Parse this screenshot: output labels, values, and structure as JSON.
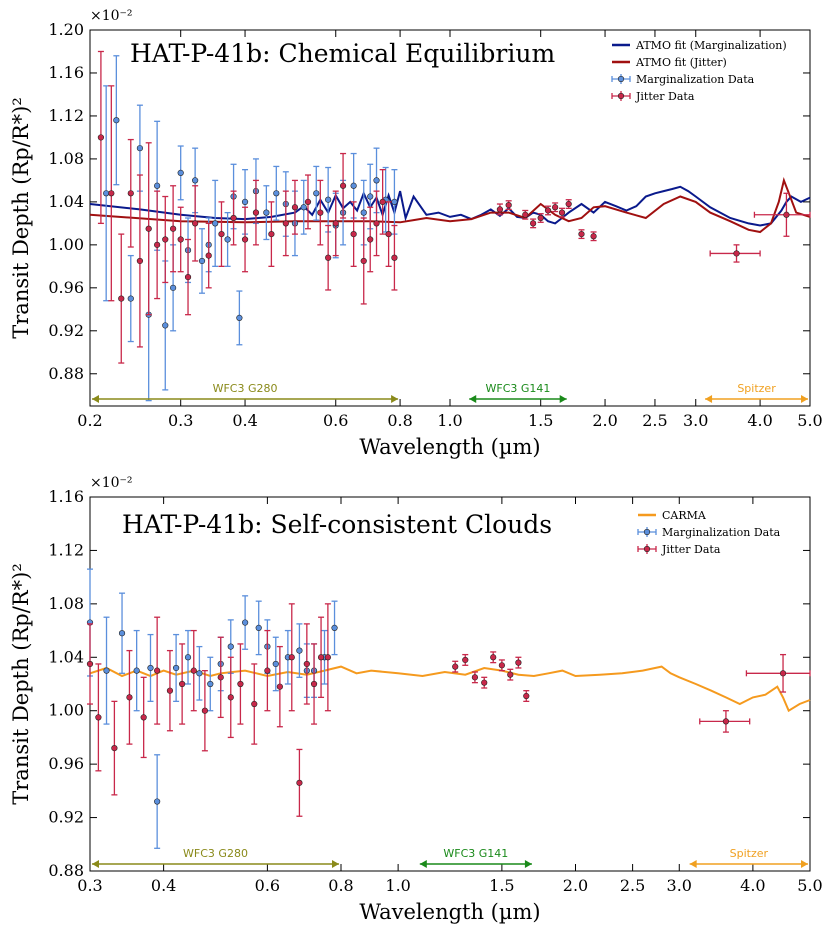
{
  "chart_data": [
    {
      "type": "scatter",
      "title": "HAT-P-41b: Chemical Equilibrium",
      "xlabel": "Wavelength (µm)",
      "ylabel": "Transit Depth (Rp/R*)²",
      "y_multiplier": "×10⁻²",
      "xscale": "log",
      "xlim": [
        0.2,
        5.0
      ],
      "ylim": [
        0.85,
        1.2
      ],
      "xticks": [
        0.2,
        0.3,
        0.4,
        0.6,
        0.8,
        1.0,
        1.5,
        2.0,
        2.5,
        3.0,
        4.0,
        5.0
      ],
      "xtick_labels": [
        "0.2",
        "0.3",
        "0.4",
        "0.6",
        "0.8",
        "1.0",
        "1.5",
        "2.0",
        "2.5",
        "3.0",
        "4.0",
        "5.0"
      ],
      "yticks": [
        0.88,
        0.92,
        0.96,
        1.0,
        1.04,
        1.08,
        1.12,
        1.16,
        1.2
      ],
      "ytick_labels": [
        "0.88",
        "0.92",
        "0.96",
        "1.00",
        "1.04",
        "1.08",
        "1.12",
        "1.16",
        "1.20"
      ],
      "legend_position": "top-right",
      "legend": [
        {
          "label": "ATMO fit (Marginalization)",
          "kind": "line",
          "color": "#0a1a8c"
        },
        {
          "label": "ATMO fit (Jitter)",
          "kind": "line",
          "color": "#a01010"
        },
        {
          "label": "Marginalization Data",
          "kind": "errorbar",
          "color": "#5b8fdc"
        },
        {
          "label": "Jitter Data",
          "kind": "errorbar",
          "color": "#c8284a"
        }
      ],
      "annotations": [
        {
          "text": "WFC3 G280",
          "x_range": [
            0.2,
            0.8
          ],
          "color": "#8a8a1a"
        },
        {
          "text": "WFC3 G141",
          "x_range": [
            1.08,
            1.7
          ],
          "color": "#1a8a1a"
        },
        {
          "text": "Spitzer",
          "x_range": [
            3.1,
            5.0
          ],
          "color": "#f0a020"
        }
      ],
      "lines": [
        {
          "name": "ATMO fit (Marginalization)",
          "color": "#0a1a8c",
          "x": [
            0.2,
            0.25,
            0.3,
            0.35,
            0.4,
            0.45,
            0.5,
            0.52,
            0.54,
            0.56,
            0.58,
            0.6,
            0.62,
            0.64,
            0.66,
            0.68,
            0.7,
            0.72,
            0.74,
            0.76,
            0.78,
            0.8,
            0.82,
            0.85,
            0.9,
            0.95,
            1.0,
            1.05,
            1.1,
            1.15,
            1.2,
            1.25,
            1.3,
            1.35,
            1.4,
            1.45,
            1.5,
            1.55,
            1.6,
            1.65,
            1.7,
            1.8,
            1.9,
            2.0,
            2.1,
            2.2,
            2.3,
            2.4,
            2.5,
            2.6,
            2.7,
            2.8,
            2.9,
            3.0,
            3.2,
            3.5,
            3.8,
            4.0,
            4.2,
            4.4,
            4.5,
            4.6,
            4.8,
            5.0
          ],
          "y": [
            1.038,
            1.033,
            1.028,
            1.025,
            1.024,
            1.026,
            1.03,
            1.036,
            1.028,
            1.042,
            1.03,
            1.046,
            1.034,
            1.04,
            1.032,
            1.048,
            1.035,
            1.044,
            1.028,
            1.046,
            1.03,
            1.05,
            1.025,
            1.045,
            1.028,
            1.03,
            1.026,
            1.028,
            1.024,
            1.028,
            1.033,
            1.027,
            1.034,
            1.026,
            1.025,
            1.03,
            1.028,
            1.022,
            1.02,
            1.025,
            1.03,
            1.038,
            1.03,
            1.04,
            1.036,
            1.032,
            1.036,
            1.045,
            1.048,
            1.05,
            1.052,
            1.054,
            1.05,
            1.045,
            1.035,
            1.025,
            1.02,
            1.018,
            1.02,
            1.032,
            1.04,
            1.045,
            1.04,
            1.044
          ]
        },
        {
          "name": "ATMO fit (Jitter)",
          "color": "#a01010",
          "x": [
            0.2,
            0.3,
            0.4,
            0.5,
            0.6,
            0.7,
            0.8,
            0.85,
            0.9,
            1.0,
            1.1,
            1.2,
            1.3,
            1.4,
            1.5,
            1.6,
            1.7,
            1.8,
            1.9,
            2.0,
            2.2,
            2.4,
            2.6,
            2.8,
            3.0,
            3.2,
            3.5,
            3.8,
            4.0,
            4.2,
            4.35,
            4.45,
            4.55,
            4.7,
            5.0
          ],
          "y": [
            1.028,
            1.022,
            1.021,
            1.022,
            1.022,
            1.022,
            1.021,
            1.023,
            1.025,
            1.022,
            1.024,
            1.03,
            1.03,
            1.025,
            1.038,
            1.028,
            1.022,
            1.025,
            1.035,
            1.036,
            1.03,
            1.025,
            1.038,
            1.045,
            1.04,
            1.03,
            1.022,
            1.014,
            1.012,
            1.02,
            1.04,
            1.06,
            1.048,
            1.03,
            1.026
          ]
        }
      ],
      "marginalization_data": {
        "color": "#5b8fdc",
        "x": [
          0.215,
          0.225,
          0.24,
          0.25,
          0.26,
          0.27,
          0.28,
          0.29,
          0.3,
          0.31,
          0.32,
          0.33,
          0.34,
          0.35,
          0.37,
          0.38,
          0.39,
          0.4,
          0.42,
          0.44,
          0.46,
          0.48,
          0.5,
          0.52,
          0.55,
          0.58,
          0.6,
          0.62,
          0.65,
          0.68,
          0.7,
          0.72,
          0.75,
          0.78
        ],
        "y": [
          1.048,
          1.116,
          0.95,
          1.09,
          0.935,
          1.055,
          0.925,
          0.96,
          1.067,
          0.995,
          1.06,
          0.985,
          1.0,
          1.02,
          1.005,
          1.045,
          0.932,
          1.04,
          1.05,
          1.03,
          1.048,
          1.038,
          1.02,
          1.035,
          1.048,
          1.042,
          1.018,
          1.03,
          1.055,
          1.03,
          1.045,
          1.06,
          1.042,
          1.04
        ],
        "yerr": [
          0.1,
          0.06,
          0.04,
          0.04,
          0.08,
          0.06,
          0.06,
          0.04,
          0.025,
          0.03,
          0.03,
          0.03,
          0.025,
          0.04,
          0.025,
          0.03,
          0.025,
          0.03,
          0.03,
          0.025,
          0.025,
          0.03,
          0.03,
          0.025,
          0.025,
          0.03,
          0.03,
          0.03,
          0.03,
          0.03,
          0.03,
          0.03,
          0.03,
          0.03
        ]
      },
      "jitter_data": {
        "color": "#c8284a",
        "x": [
          0.21,
          0.22,
          0.23,
          0.24,
          0.25,
          0.26,
          0.27,
          0.28,
          0.29,
          0.3,
          0.31,
          0.32,
          0.34,
          0.36,
          0.38,
          0.4,
          0.42,
          0.45,
          0.48,
          0.5,
          0.53,
          0.56,
          0.58,
          0.6,
          0.62,
          0.65,
          0.68,
          0.7,
          0.72,
          0.74,
          0.76,
          0.78,
          1.25,
          1.3,
          1.4,
          1.45,
          1.5,
          1.55,
          1.6,
          1.65,
          1.7,
          1.8,
          1.9,
          3.6,
          4.5
        ],
        "y": [
          1.1,
          1.048,
          0.95,
          1.048,
          0.985,
          1.015,
          1.0,
          1.005,
          1.015,
          1.005,
          0.97,
          1.02,
          0.99,
          1.01,
          1.025,
          1.005,
          1.03,
          1.01,
          1.02,
          1.035,
          1.04,
          1.03,
          0.988,
          1.02,
          1.055,
          1.01,
          0.985,
          1.005,
          1.02,
          1.04,
          1.01,
          0.988,
          1.033,
          1.037,
          1.028,
          1.02,
          1.025,
          1.032,
          1.035,
          1.03,
          1.038,
          1.01,
          1.008,
          0.992,
          1.028
        ],
        "yerr": [
          0.08,
          0.1,
          0.06,
          0.05,
          0.08,
          0.08,
          0.05,
          0.04,
          0.04,
          0.03,
          0.035,
          0.035,
          0.03,
          0.03,
          0.025,
          0.03,
          0.03,
          0.03,
          0.03,
          0.025,
          0.025,
          0.03,
          0.03,
          0.03,
          0.03,
          0.03,
          0.04,
          0.03,
          0.03,
          0.03,
          0.03,
          0.03,
          0.005,
          0.004,
          0.004,
          0.004,
          0.004,
          0.004,
          0.004,
          0.004,
          0.004,
          0.004,
          0.004,
          0.008,
          0.02
        ],
        "xerr": [
          0,
          0,
          0,
          0,
          0,
          0,
          0,
          0,
          0,
          0,
          0,
          0,
          0,
          0,
          0,
          0,
          0,
          0,
          0,
          0,
          0,
          0,
          0,
          0,
          0,
          0,
          0,
          0,
          0,
          0,
          0,
          0,
          0,
          0,
          0,
          0,
          0,
          0,
          0,
          0,
          0,
          0,
          0,
          0.4,
          0.6
        ]
      }
    },
    {
      "type": "scatter",
      "title": "HAT-P-41b: Self-consistent Clouds",
      "xlabel": "Wavelength (µm)",
      "ylabel": "Transit Depth (Rp/R*)²",
      "y_multiplier": "×10⁻²",
      "xscale": "log",
      "xlim": [
        0.3,
        5.0
      ],
      "ylim": [
        0.88,
        1.16
      ],
      "xticks": [
        0.3,
        0.4,
        0.6,
        0.8,
        1.0,
        1.5,
        2.0,
        2.5,
        3.0,
        4.0,
        5.0
      ],
      "xtick_labels": [
        "0.3",
        "0.4",
        "0.6",
        "0.8",
        "1.0",
        "1.5",
        "2.0",
        "2.5",
        "3.0",
        "4.0",
        "5.0"
      ],
      "yticks": [
        0.88,
        0.92,
        0.96,
        1.0,
        1.04,
        1.08,
        1.12,
        1.16
      ],
      "ytick_labels": [
        "0.88",
        "0.92",
        "0.96",
        "1.00",
        "1.04",
        "1.08",
        "1.12",
        "1.16"
      ],
      "legend_position": "top-right",
      "legend": [
        {
          "label": "CARMA",
          "kind": "line",
          "color": "#f59a1e"
        },
        {
          "label": "Marginalization Data",
          "kind": "errorbar",
          "color": "#5b8fdc"
        },
        {
          "label": "Jitter Data",
          "kind": "errorbar",
          "color": "#c8284a"
        }
      ],
      "annotations": [
        {
          "text": "WFC3 G280",
          "x_range": [
            0.3,
            0.8
          ],
          "color": "#8a8a1a"
        },
        {
          "text": "WFC3 G141",
          "x_range": [
            1.08,
            1.7
          ],
          "color": "#1a8a1a"
        },
        {
          "text": "Spitzer",
          "x_range": [
            3.1,
            5.0
          ],
          "color": "#f0a020"
        }
      ],
      "lines": [
        {
          "name": "CARMA",
          "color": "#f59a1e",
          "x": [
            0.3,
            0.32,
            0.34,
            0.36,
            0.38,
            0.4,
            0.42,
            0.45,
            0.48,
            0.5,
            0.55,
            0.6,
            0.65,
            0.7,
            0.75,
            0.8,
            0.85,
            0.9,
            1.0,
            1.1,
            1.2,
            1.3,
            1.4,
            1.5,
            1.6,
            1.7,
            1.8,
            1.9,
            2.0,
            2.2,
            2.4,
            2.6,
            2.8,
            2.9,
            3.0,
            3.2,
            3.4,
            3.6,
            3.8,
            4.0,
            4.2,
            4.4,
            4.5,
            4.6,
            4.8,
            5.0
          ],
          "y": [
            1.028,
            1.032,
            1.026,
            1.03,
            1.026,
            1.03,
            1.027,
            1.03,
            1.026,
            1.028,
            1.03,
            1.026,
            1.029,
            1.027,
            1.03,
            1.033,
            1.028,
            1.03,
            1.028,
            1.026,
            1.029,
            1.027,
            1.032,
            1.03,
            1.027,
            1.026,
            1.028,
            1.03,
            1.026,
            1.027,
            1.028,
            1.03,
            1.033,
            1.028,
            1.025,
            1.02,
            1.015,
            1.01,
            1.005,
            1.01,
            1.012,
            1.018,
            1.01,
            1.0,
            1.005,
            1.008
          ]
        }
      ],
      "marginalization_data": {
        "color": "#5b8fdc",
        "x": [
          0.3,
          0.32,
          0.34,
          0.36,
          0.38,
          0.39,
          0.42,
          0.44,
          0.46,
          0.48,
          0.5,
          0.52,
          0.55,
          0.58,
          0.6,
          0.62,
          0.65,
          0.68,
          0.7,
          0.72,
          0.75,
          0.78
        ],
        "y": [
          1.066,
          1.03,
          1.058,
          1.03,
          1.032,
          0.932,
          1.032,
          1.04,
          1.028,
          1.02,
          1.035,
          1.048,
          1.066,
          1.062,
          1.048,
          1.035,
          1.04,
          1.045,
          1.03,
          1.03,
          1.04,
          1.062
        ],
        "yerr": [
          0.04,
          0.04,
          0.03,
          0.03,
          0.025,
          0.035,
          0.025,
          0.02,
          0.02,
          0.02,
          0.02,
          0.02,
          0.02,
          0.02,
          0.02,
          0.02,
          0.02,
          0.02,
          0.02,
          0.02,
          0.02,
          0.02
        ]
      },
      "jitter_data": {
        "color": "#c8284a",
        "x": [
          0.3,
          0.31,
          0.33,
          0.35,
          0.37,
          0.39,
          0.41,
          0.43,
          0.45,
          0.47,
          0.5,
          0.52,
          0.54,
          0.57,
          0.6,
          0.63,
          0.66,
          0.68,
          0.7,
          0.72,
          0.74,
          0.76,
          1.25,
          1.3,
          1.35,
          1.4,
          1.45,
          1.5,
          1.55,
          1.6,
          1.65,
          3.6,
          4.5
        ],
        "y": [
          1.035,
          0.995,
          0.972,
          1.01,
          0.995,
          1.03,
          1.015,
          1.02,
          1.03,
          1.0,
          1.025,
          1.01,
          1.02,
          1.005,
          1.03,
          1.018,
          1.04,
          0.946,
          1.035,
          1.02,
          1.04,
          1.04,
          1.033,
          1.038,
          1.025,
          1.021,
          1.04,
          1.034,
          1.027,
          1.036,
          1.011,
          0.992,
          1.028
        ],
        "yerr": [
          0.03,
          0.04,
          0.035,
          0.035,
          0.03,
          0.04,
          0.03,
          0.03,
          0.03,
          0.03,
          0.03,
          0.03,
          0.03,
          0.03,
          0.03,
          0.03,
          0.04,
          0.025,
          0.03,
          0.03,
          0.03,
          0.04,
          0.004,
          0.004,
          0.004,
          0.004,
          0.004,
          0.004,
          0.004,
          0.004,
          0.004,
          0.008,
          0.014
        ],
        "xerr": [
          0,
          0,
          0,
          0,
          0,
          0,
          0,
          0,
          0,
          0,
          0,
          0,
          0,
          0,
          0,
          0,
          0,
          0,
          0,
          0,
          0,
          0,
          0,
          0,
          0,
          0,
          0,
          0,
          0,
          0,
          0,
          0.35,
          0.6
        ]
      }
    }
  ]
}
